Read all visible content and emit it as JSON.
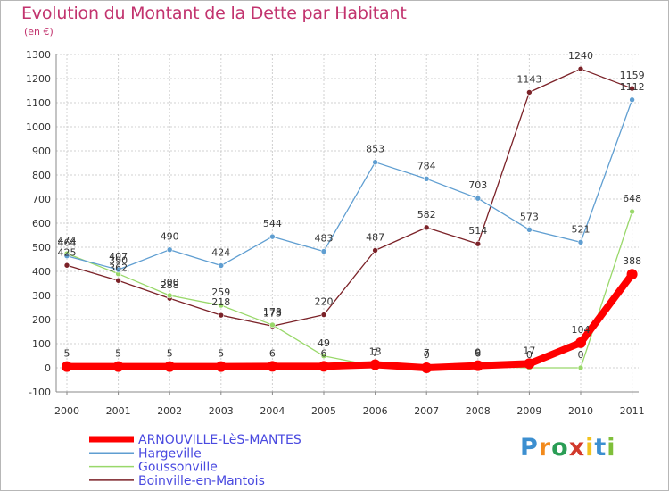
{
  "title": "Evolution du Montant de la Dette par Habitant",
  "unit": "(en €)",
  "logo": "Proxiti",
  "chart_data": {
    "type": "line",
    "x": [
      "2000",
      "2001",
      "2002",
      "2003",
      "2004",
      "2005",
      "2006",
      "2007",
      "2008",
      "2009",
      "2010",
      "2011"
    ],
    "ylim": [
      -100,
      1300
    ],
    "yticks": [
      -100,
      0,
      100,
      200,
      300,
      400,
      500,
      600,
      700,
      800,
      900,
      1000,
      1100,
      1200,
      1300
    ],
    "grid": true,
    "legend": "bottom-left",
    "series": [
      {
        "name": "Boinville-en-Mantois",
        "color": "#7b2228",
        "width": 1.3,
        "values": [
          425,
          362,
          288,
          218,
          173,
          220,
          487,
          582,
          514,
          1143,
          1240,
          1159
        ],
        "labels": [
          "425",
          "362",
          "288",
          "218",
          "173",
          "220",
          "487",
          "582",
          "514",
          "1143",
          "1240",
          "1159"
        ]
      },
      {
        "name": "Goussonville",
        "color": "#99d86a",
        "width": 1.3,
        "values": [
          474,
          390,
          300,
          259,
          178,
          49,
          7,
          7,
          6,
          0,
          0,
          648
        ],
        "labels": [
          "474",
          "390",
          "300",
          "259",
          "178",
          "49",
          "7",
          "7",
          "6",
          "0",
          "0",
          "648"
        ]
      },
      {
        "name": "Hargeville",
        "color": "#5f9ed1",
        "width": 1.3,
        "values": [
          464,
          407,
          490,
          424,
          544,
          483,
          853,
          784,
          703,
          573,
          521,
          1112
        ],
        "labels": [
          "464",
          "407",
          "490",
          "424",
          "544",
          "483",
          "853",
          "784",
          "703",
          "573",
          "521",
          "1112"
        ]
      },
      {
        "name": "ARNOUVILLE-LèS-MANTES",
        "color": "#ff0000",
        "width": 8,
        "values": [
          5,
          5,
          5,
          5,
          6,
          6,
          13,
          0,
          9,
          17,
          104,
          388
        ],
        "labels": [
          "5",
          "5",
          "5",
          "5",
          "6",
          "6",
          "13",
          "0",
          "9",
          "17",
          "104",
          "388"
        ]
      }
    ],
    "legend_order": [
      "ARNOUVILLE-LèS-MANTES",
      "Hargeville",
      "Goussonville",
      "Boinville-en-Mantois"
    ]
  }
}
